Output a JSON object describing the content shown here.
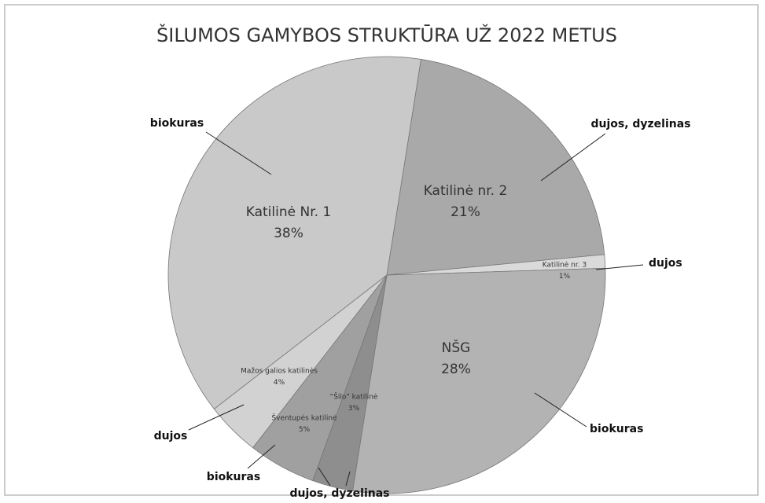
{
  "chart_data": {
    "type": "pie",
    "title": "ŠILUMOS GAMYBOS STRUKTŪRA UŽ 2022 METUS",
    "categories": [
      "Katilinė nr. 2",
      "Katilinė nr. 3",
      "NŠG",
      "“Šilo” katilinė",
      "Šventupės katilinė",
      "Mažos galios katilinės",
      "Katilinė Nr. 1"
    ],
    "values": [
      21,
      1,
      28,
      3,
      5,
      4,
      38
    ],
    "value_labels": [
      "21%",
      "1%",
      "28%",
      "3%",
      "5%",
      "4%",
      "38%"
    ],
    "colors": [
      "#a9a9a9",
      "#dadada",
      "#b3b3b3",
      "#8e8e8e",
      "#a0a0a0",
      "#d2d2d2",
      "#c9c9c9"
    ],
    "annotations": [
      "dujos, dyzelinas",
      "dujos",
      "biokuras",
      "dujos, dyzelinas",
      "biokuras",
      "dujos",
      "biokuras"
    ]
  }
}
